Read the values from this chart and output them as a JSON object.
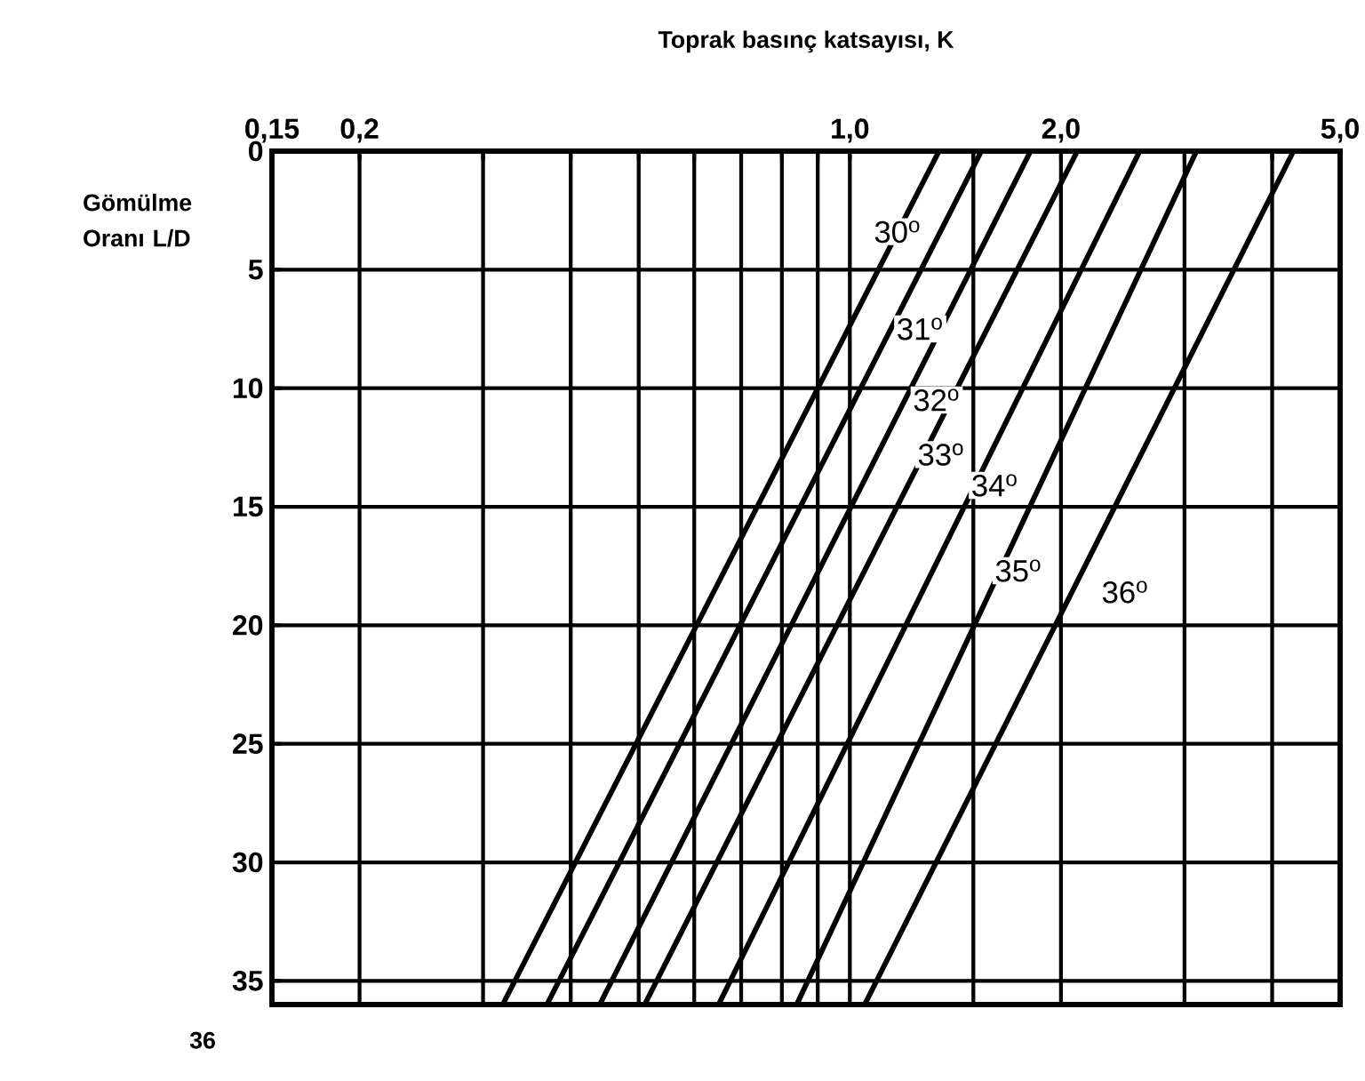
{
  "chart_data": {
    "type": "line",
    "xlabel": "Toprak basınç katsayısı, K",
    "ylabel": "Gömülme Oranı L/D",
    "log": "x",
    "xlim": [
      0.15,
      5.0
    ],
    "ylim": [
      36,
      0
    ],
    "xticks": [
      {
        "value": 0.15,
        "label": "0,15"
      },
      {
        "value": 0.2,
        "label": "0,2"
      },
      {
        "value": 0.3,
        "label": null
      },
      {
        "value": 0.4,
        "label": null
      },
      {
        "value": 0.5,
        "label": null
      },
      {
        "value": 0.6,
        "label": null
      },
      {
        "value": 0.7,
        "label": null
      },
      {
        "value": 0.8,
        "label": null
      },
      {
        "value": 0.9,
        "label": null
      },
      {
        "value": 1.0,
        "label": "1,0"
      },
      {
        "value": 1.5,
        "label": null
      },
      {
        "value": 2.0,
        "label": "2,0"
      },
      {
        "value": 3.0,
        "label": null
      },
      {
        "value": 4.0,
        "label": null
      },
      {
        "value": 5.0,
        "label": "5,0"
      }
    ],
    "yticks": [
      0,
      5,
      10,
      15,
      20,
      25,
      30,
      35
    ],
    "grid": true,
    "marker": "none",
    "line_style": "solid",
    "series": [
      {
        "color": "#000000",
        "x": [
          1.34,
          0.32
        ],
        "values": [
          0,
          36
        ]
      },
      {
        "color": "#000000",
        "x": [
          1.54,
          0.37
        ],
        "values": [
          0,
          36
        ]
      },
      {
        "color": "#000000",
        "x": [
          1.81,
          0.44
        ],
        "values": [
          0,
          36
        ]
      },
      {
        "color": "#000000",
        "x": [
          2.11,
          0.51
        ],
        "values": [
          0,
          36
        ]
      },
      {
        "color": "#000000",
        "x": [
          2.59,
          0.65
        ],
        "values": [
          0,
          36
        ]
      },
      {
        "color": "#000000",
        "x": [
          3.12,
          0.84
        ],
        "values": [
          0,
          36
        ]
      },
      {
        "color": "#000000",
        "x": [
          4.29,
          1.05
        ],
        "values": [
          0,
          36
        ]
      }
    ],
    "annotations": [
      {
        "text": "30$^{o}$",
        "x": 1.17,
        "y": 3.4
      },
      {
        "text": "31$^{o}$",
        "x": 1.26,
        "y": 7.5
      },
      {
        "text": "32$^{o}$",
        "x": 1.33,
        "y": 10.5
      },
      {
        "text": "33$^{o}$",
        "x": 1.35,
        "y": 12.8
      },
      {
        "text": "34$^{o}$",
        "x": 1.61,
        "y": 14.1
      },
      {
        "text": "35$^{o}$",
        "x": 1.74,
        "y": 17.7
      },
      {
        "text": "36$^{o}$",
        "x": 2.47,
        "y": 18.6
      },
      "36"
    ]
  }
}
